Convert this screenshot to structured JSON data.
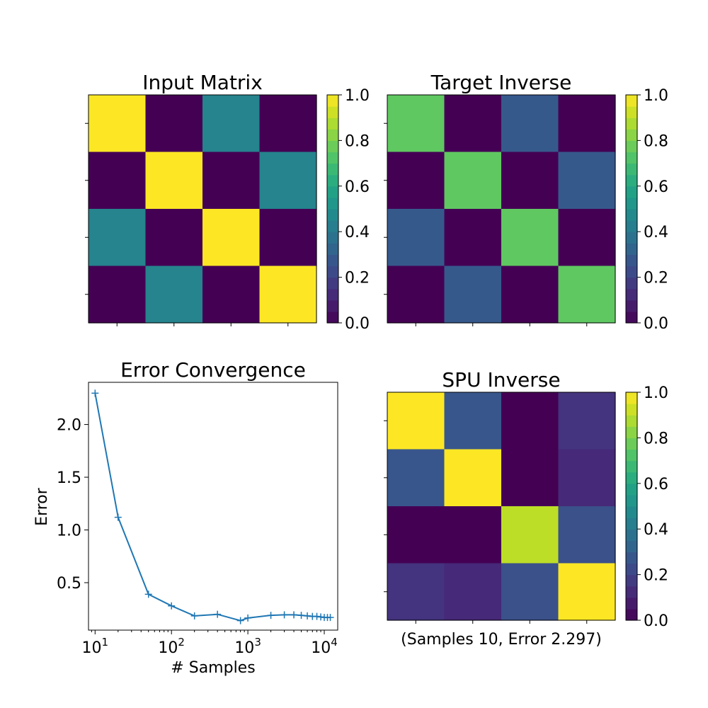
{
  "chart_data": [
    {
      "type": "heatmap",
      "title": "Input Matrix",
      "rows": 4,
      "cols": 4,
      "values": [
        [
          1.0,
          0.0,
          0.45,
          0.0
        ],
        [
          0.0,
          1.0,
          0.0,
          0.45
        ],
        [
          0.45,
          0.0,
          1.0,
          0.0
        ],
        [
          0.0,
          0.45,
          0.0,
          1.0
        ]
      ],
      "colorbar": {
        "range": [
          0.0,
          1.0
        ],
        "ticks": [
          "0.0",
          "0.2",
          "0.4",
          "0.6",
          "0.8",
          "1.0"
        ],
        "colormap": "viridis",
        "levels": 20
      },
      "show_tick_labels": false
    },
    {
      "type": "heatmap",
      "title": "Target Inverse",
      "rows": 4,
      "cols": 4,
      "values": [
        [
          0.75,
          0.0,
          0.28,
          0.0
        ],
        [
          0.0,
          0.75,
          0.0,
          0.28
        ],
        [
          0.28,
          0.0,
          0.75,
          0.0
        ],
        [
          0.0,
          0.28,
          0.0,
          0.75
        ]
      ],
      "colorbar": {
        "range": [
          0.0,
          1.0
        ],
        "ticks": [
          "0.0",
          "0.2",
          "0.4",
          "0.6",
          "0.8",
          "1.0"
        ],
        "colormap": "viridis",
        "levels": 20
      },
      "show_tick_labels": false
    },
    {
      "type": "line",
      "title": "Error Convergence",
      "xlabel": "# Samples",
      "ylabel": "Error",
      "xscale": "log",
      "xlim": [
        8.2,
        15000
      ],
      "ylim": [
        0.05,
        2.4
      ],
      "xticks": [
        10,
        100,
        1000,
        10000
      ],
      "xtick_labels": [
        {
          "base": "10",
          "exp": "1"
        },
        {
          "base": "10",
          "exp": "2"
        },
        {
          "base": "10",
          "exp": "3"
        },
        {
          "base": "10",
          "exp": "4"
        }
      ],
      "yticks": [
        0.5,
        1.0,
        1.5,
        2.0
      ],
      "ytick_labels": [
        "0.5",
        "1.0",
        "1.5",
        "2.0"
      ],
      "marker": "+",
      "color": "#1f77b4",
      "series": [
        {
          "x": [
            10,
            20,
            50,
            100,
            200,
            400,
            800,
            1000,
            2000,
            3000,
            4000,
            5000,
            6000,
            7000,
            8000,
            9000,
            10000,
            11000,
            12000
          ],
          "values": [
            2.297,
            1.12,
            0.39,
            0.28,
            0.185,
            0.2,
            0.14,
            0.165,
            0.19,
            0.195,
            0.195,
            0.19,
            0.185,
            0.18,
            0.18,
            0.175,
            0.17,
            0.17,
            0.17
          ]
        }
      ]
    },
    {
      "type": "heatmap",
      "title": "SPU Inverse",
      "xlabel": "(Samples 10, Error 2.297)",
      "rows": 4,
      "cols": 4,
      "values": [
        [
          1.0,
          0.27,
          0.0,
          0.15
        ],
        [
          0.27,
          1.0,
          0.0,
          0.12
        ],
        [
          0.0,
          0.0,
          0.9,
          0.25
        ],
        [
          0.15,
          0.12,
          0.25,
          1.0
        ]
      ],
      "colorbar": {
        "range": [
          0.0,
          1.0
        ],
        "ticks": [
          "0.0",
          "0.2",
          "0.4",
          "0.6",
          "0.8",
          "1.0"
        ],
        "colormap": "viridis",
        "levels": 20
      },
      "show_tick_labels": false
    }
  ]
}
